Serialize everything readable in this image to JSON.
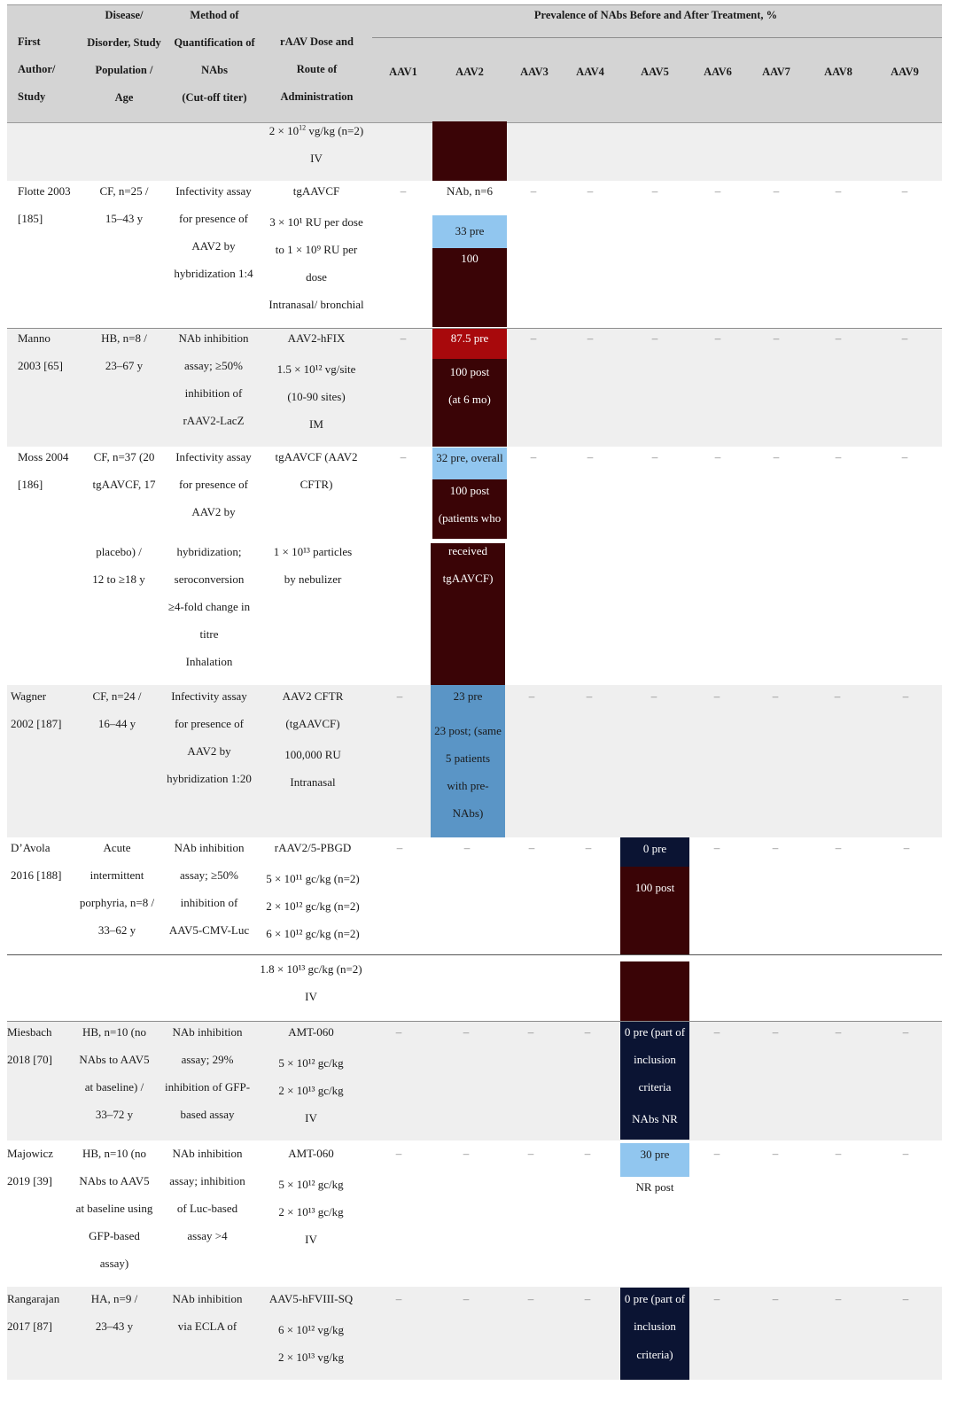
{
  "colors": {
    "header_bg": "#d4d4d4",
    "band_bg": "#efefef",
    "maroon": "#3a0406",
    "red": "#a8090c",
    "light_blue": "#91c6ef",
    "mid_blue": "#5a95c6",
    "navy": "#0b1433"
  },
  "header": {
    "first_author": [
      "First",
      "Author/",
      "Study"
    ],
    "disease": [
      "Disease/",
      "Disorder, Study",
      "Population /",
      "Age"
    ],
    "method": [
      "Method of",
      "Quantification of",
      "NAbs",
      "(Cut-off titer)"
    ],
    "dose": [
      "rAAV Dose and",
      "Route of",
      "Administration"
    ],
    "prevalence": "Prevalence of NAbs Before and After Treatment, %",
    "serotypes": [
      "AAV1",
      "AAV2",
      "AAV3",
      "AAV4",
      "AAV5",
      "AAV6",
      "AAV7",
      "AAV8",
      "AAV9"
    ]
  },
  "dash": "–",
  "rows": {
    "cont1": {
      "dose_prefix": "2 × 10",
      "dose_exp": "12",
      "dose_suffix": " vg/kg (n=2)",
      "route": "IV"
    },
    "flotte": {
      "author": [
        "Flotte 2003",
        "[185]"
      ],
      "disease": [
        "CF, n=25 /",
        "15–43 y"
      ],
      "method": [
        "Infectivity assay",
        "for presence of",
        "AAV2 by",
        "hybridization 1:4"
      ],
      "dose": [
        "tgAAVCF",
        "3 × 10¹ RU per dose",
        "to 1 × 10⁹ RU per",
        "dose",
        "Intranasal/ bronchial"
      ],
      "aav2": [
        "NAb, n=6",
        "33 pre",
        "100"
      ]
    },
    "manno": {
      "author": [
        "Manno",
        "2003 [65]"
      ],
      "disease": [
        "HB, n=8 /",
        "23–67 y"
      ],
      "method": [
        "NAb inhibition",
        "assay; ≥50%",
        "inhibition of",
        "rAAV2-LacZ"
      ],
      "dose": [
        "AAV2-hFIX",
        "1.5 × 10¹² vg/site",
        "(10-90 sites)",
        "IM"
      ],
      "aav2": [
        "87.5 pre",
        "100 post",
        "(at 6 mo)"
      ]
    },
    "moss": {
      "author": [
        "Moss 2004",
        "[186]"
      ],
      "disease": [
        "CF, n=37 (20",
        "tgAAVCF, 17",
        "placebo) /",
        "12 to ≥18 y"
      ],
      "method": [
        "Infectivity assay",
        "for presence of",
        "AAV2 by",
        "hybridization;",
        "seroconversion",
        "≥4-fold change in",
        "titre",
        "Inhalation"
      ],
      "dose": [
        "tgAAVCF (AAV2",
        "CFTR)",
        "1 × 10¹³ particles",
        "by nebulizer"
      ],
      "aav2": [
        "32 pre, overall",
        "100 post",
        "(patients who",
        "received",
        "tgAAVCF)"
      ]
    },
    "wagner": {
      "author": [
        "Wagner",
        "2002 [187]"
      ],
      "disease": [
        "CF, n=24 /",
        "16–44 y"
      ],
      "method": [
        "Infectivity assay",
        "for presence of",
        "AAV2 by",
        "hybridization 1:20"
      ],
      "dose": [
        "AAV2 CFTR",
        "(tgAAVCF)",
        "100,000 RU",
        "Intranasal"
      ],
      "aav2": [
        "23 pre",
        "23 post; (same",
        "5 patients",
        "with pre-",
        "NAbs)"
      ]
    },
    "davola": {
      "author": [
        "D’Avola",
        "2016 [188]"
      ],
      "disease": [
        "Acute",
        "intermittent",
        "porphyria, n=8 /",
        "33–62 y"
      ],
      "method": [
        "NAb inhibition",
        "assay; ≥50%",
        "inhibition of",
        "AAV5-CMV-Luc"
      ],
      "dose": [
        "rAAV2/5-PBGD",
        "5 × 10¹¹ gc/kg (n=2)",
        "2 × 10¹² gc/kg (n=2)",
        "6 × 10¹² gc/kg (n=2)"
      ],
      "aav5": [
        "0 pre",
        "100 post"
      ]
    },
    "cont2": {
      "dose": [
        "1.8 × 10¹³ gc/kg (n=2)",
        "IV"
      ]
    },
    "miesbach": {
      "author": [
        "Miesbach",
        "2018 [70]"
      ],
      "disease": [
        "HB, n=10 (no",
        "NAbs to AAV5",
        "at baseline) /",
        "33–72 y"
      ],
      "method": [
        "NAb inhibition",
        "assay; 29%",
        "inhibition of GFP-",
        "based assay"
      ],
      "dose": [
        "AMT-060",
        "5 × 10¹² gc/kg",
        "2 × 10¹³ gc/kg",
        "IV"
      ],
      "aav5": [
        "0 pre (part of",
        "inclusion",
        "criteria",
        "NAbs NR"
      ]
    },
    "majowicz": {
      "author": [
        "Majowicz",
        "2019 [39]"
      ],
      "disease": [
        "HB, n=10 (no",
        "NAbs to AAV5",
        "at baseline using",
        "GFP-based",
        "assay)"
      ],
      "method": [
        "NAb inhibition",
        "assay; inhibition",
        "of Luc-based",
        "assay >4"
      ],
      "dose": [
        "AMT-060",
        "5 × 10¹² gc/kg",
        "2 × 10¹³ gc/kg",
        "IV"
      ],
      "aav5": [
        "30 pre",
        "NR post"
      ]
    },
    "rangarajan": {
      "author": [
        "Rangarajan",
        "2017 [87]"
      ],
      "disease": [
        "HA, n=9 /",
        "23–43 y"
      ],
      "method": [
        "NAb inhibition",
        "via ECLA of"
      ],
      "dose": [
        "AAV5-hFVIII-SQ",
        "6 × 10¹² vg/kg",
        "2 × 10¹³ vg/kg"
      ],
      "aav5": [
        "0 pre (part of",
        "inclusion",
        "criteria)"
      ]
    }
  }
}
